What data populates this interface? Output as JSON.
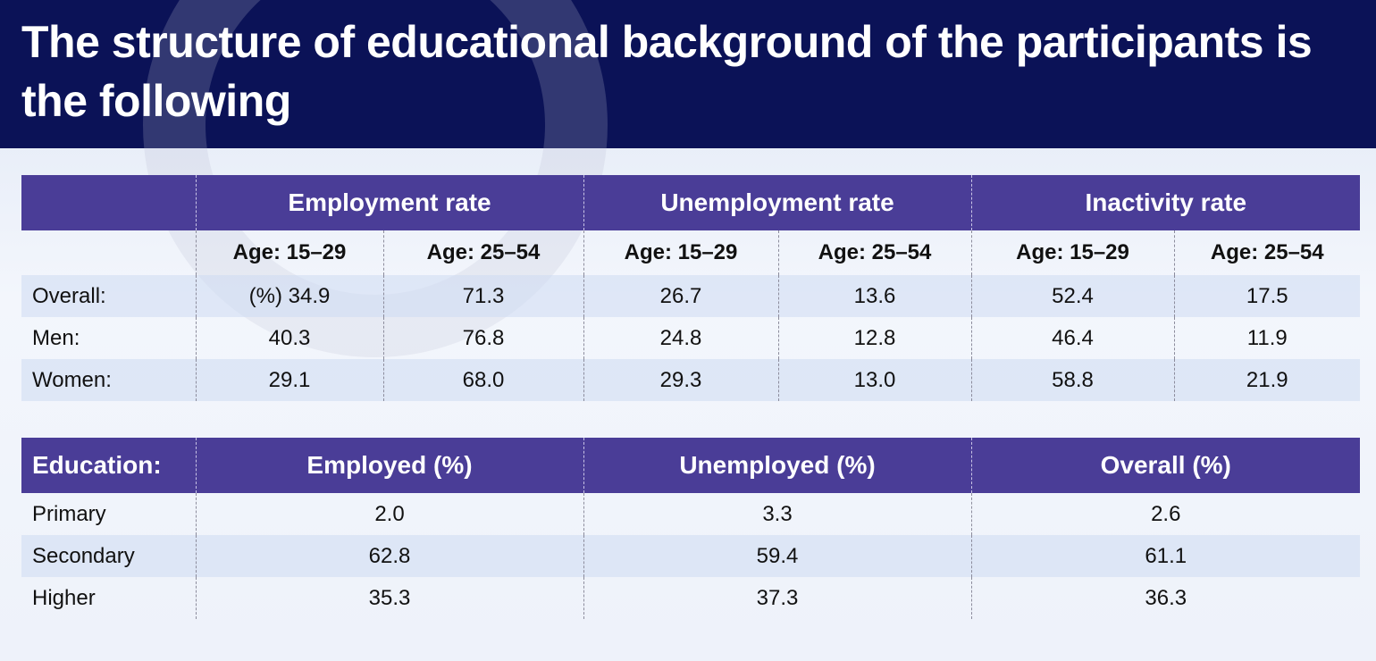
{
  "title": "The structure of educational background of the participants is the following",
  "table1": {
    "groups": [
      "Employment rate",
      "Unemployment rate",
      "Inactivity rate"
    ],
    "age_headers": [
      "Age: 15–29",
      "Age: 25–54",
      "Age: 15–29",
      "Age: 25–54",
      "Age: 15–29",
      "Age: 25–54"
    ],
    "rows": [
      {
        "label": "Overall:",
        "values": [
          "(%) 34.9",
          "71.3",
          "26.7",
          "13.6",
          "52.4",
          "17.5"
        ]
      },
      {
        "label": "Men:",
        "values": [
          "40.3",
          "76.8",
          "24.8",
          "12.8",
          "46.4",
          "11.9"
        ]
      },
      {
        "label": "Women:",
        "values": [
          "29.1",
          "68.0",
          "29.3",
          "13.0",
          "58.8",
          "21.9"
        ]
      }
    ]
  },
  "table2": {
    "headers": [
      "Education:",
      "Employed (%)",
      "Unemployed (%)",
      "Overall (%)"
    ],
    "rows": [
      {
        "label": "Primary",
        "values": [
          "2.0",
          "3.3",
          "2.6"
        ]
      },
      {
        "label": "Secondary",
        "values": [
          "62.8",
          "59.4",
          "61.1"
        ]
      },
      {
        "label": "Higher",
        "values": [
          "35.3",
          "37.3",
          "36.3"
        ]
      }
    ]
  },
  "colors": {
    "header_bg": "#0b1257",
    "table_header_bg": "#4a3d97"
  }
}
